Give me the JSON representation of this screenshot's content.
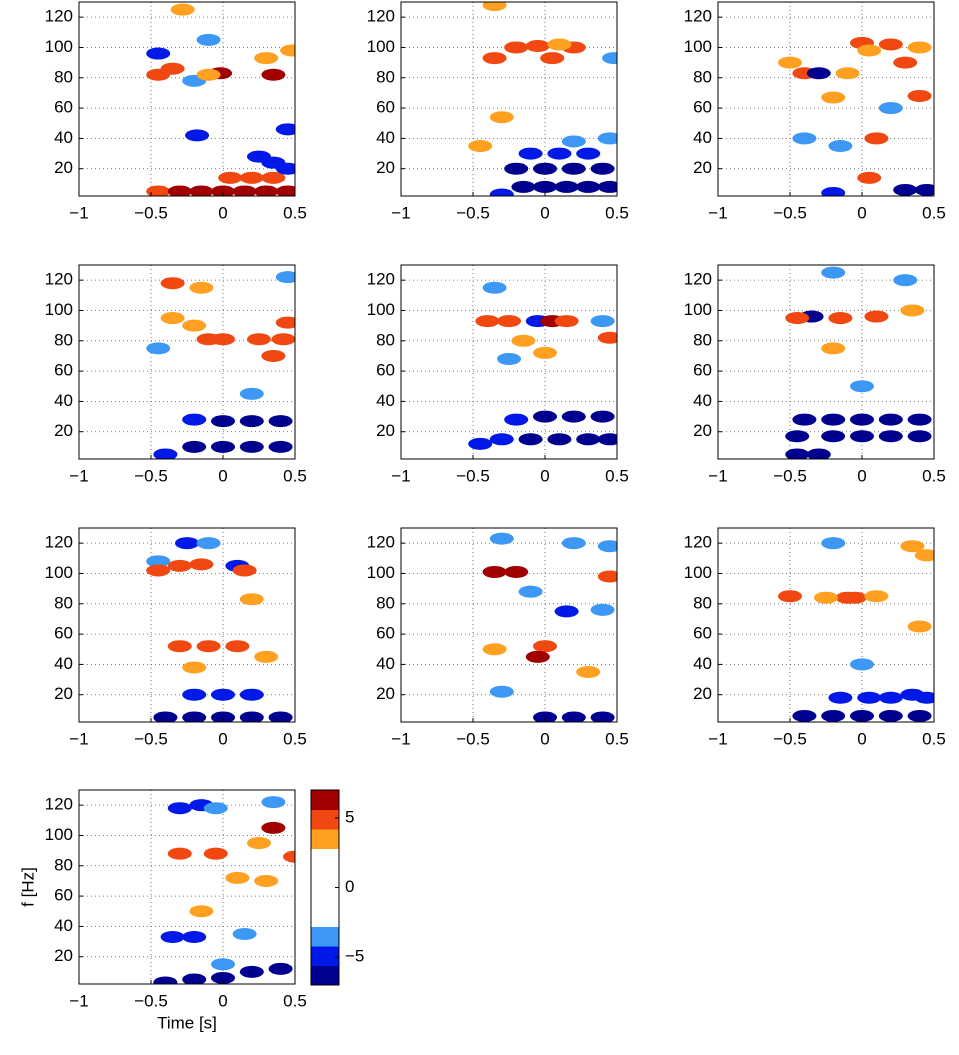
{
  "chart_data": [
    {
      "type": "heatmap",
      "xlim": [
        -1,
        0.5
      ],
      "ylim": [
        2,
        130
      ],
      "xticks": [
        {
          "value": -1,
          "label": "−1"
        },
        {
          "value": -0.5,
          "label": "−0.5"
        },
        0,
        0.5
      ],
      "yticks": [
        20,
        40,
        60,
        80,
        100,
        120
      ],
      "grid": true,
      "x": [
        -0.45,
        -0.3,
        -0.15,
        0,
        0.15,
        0.3,
        0.45,
        0.05,
        0.2,
        0.35,
        0.25,
        0.35,
        0.45,
        0.45,
        -0.18,
        -0.45,
        -0.1,
        -0.2,
        -0.45,
        -0.35,
        -0.02,
        0.35,
        0.3,
        0.48,
        -0.28,
        -0.1
      ],
      "y": [
        5,
        5,
        5,
        5,
        5,
        5,
        5,
        14,
        14,
        14,
        28,
        24,
        20,
        46,
        42,
        96,
        105,
        78,
        82,
        86,
        83,
        82,
        93,
        98,
        125,
        82
      ],
      "values": [
        5,
        6,
        6,
        6.5,
        6.5,
        6,
        6,
        5,
        5,
        5,
        -5,
        -5,
        -5,
        -5,
        -5,
        -5.5,
        -4,
        -4,
        5,
        5,
        6,
        6,
        4,
        4,
        4,
        4
      ]
    },
    {
      "type": "heatmap",
      "xlim": [
        -1,
        0.5
      ],
      "ylim": [
        2,
        130
      ],
      "xticks": [
        {
          "value": -1,
          "label": "−1"
        },
        {
          "value": -0.5,
          "label": "−0.5"
        },
        0,
        0.5
      ],
      "yticks": [
        20,
        40,
        60,
        80,
        100,
        120
      ],
      "grid": true,
      "x": [
        -0.3,
        -0.15,
        0,
        0.15,
        0.3,
        0.45,
        -0.2,
        0,
        0.2,
        0.4,
        -0.1,
        0.1,
        0.3,
        0.45,
        0.2,
        -0.35,
        -0.2,
        -0.05,
        0.05,
        0.2,
        0.1,
        -0.45,
        -0.3,
        -0.35,
        0.48
      ],
      "y": [
        3,
        8,
        8,
        8,
        8,
        8,
        20,
        20,
        20,
        20,
        30,
        30,
        30,
        40,
        38,
        93,
        100,
        101,
        93,
        100,
        102,
        35,
        54,
        128,
        93
      ],
      "values": [
        -5,
        -6,
        -6.5,
        -6.5,
        -6.5,
        -6.5,
        -6,
        -6,
        -6.5,
        -6.5,
        -5.5,
        -5.5,
        -5,
        -4,
        -4,
        5,
        5,
        5,
        5,
        5,
        4,
        4,
        4,
        4,
        -4
      ]
    },
    {
      "type": "heatmap",
      "xlim": [
        -1,
        0.5
      ],
      "ylim": [
        2,
        130
      ],
      "xticks": [
        {
          "value": -1,
          "label": "−1"
        },
        {
          "value": -0.5,
          "label": "−0.5"
        },
        0,
        0.5
      ],
      "yticks": [
        20,
        40,
        60,
        80,
        100,
        120
      ],
      "grid": true,
      "x": [
        -0.2,
        0.3,
        0.45,
        0.05,
        0.1,
        0.2,
        0,
        0.4,
        0.3,
        0.4,
        -0.5,
        -0.4,
        -0.1,
        -0.2,
        0.05,
        -0.3,
        0.2,
        -0.4,
        -0.15
      ],
      "y": [
        4,
        6,
        6,
        14,
        40,
        102,
        103,
        100,
        90,
        68,
        90,
        83,
        83,
        67,
        98,
        83,
        60,
        40,
        35
      ],
      "values": [
        -5,
        -6.5,
        -6.5,
        5.5,
        5,
        5,
        5,
        4,
        5,
        5,
        4,
        5,
        4,
        4,
        4,
        -6,
        -4,
        -4,
        -4
      ]
    },
    {
      "type": "heatmap",
      "xlim": [
        -1,
        0.5
      ],
      "ylim": [
        2,
        130
      ],
      "xticks": [
        {
          "value": -1,
          "label": "−1"
        },
        {
          "value": -0.5,
          "label": "−0.5"
        },
        0,
        0.5
      ],
      "yticks": [
        20,
        40,
        60,
        80,
        100,
        120
      ],
      "grid": true,
      "x": [
        -0.4,
        -0.2,
        0,
        0.2,
        0.4,
        -0.2,
        0,
        0.2,
        0.4,
        0.2,
        -0.45,
        0.45,
        -0.35,
        -0.15,
        -0.35,
        -0.2,
        -0.1,
        0,
        0.25,
        0.42,
        0.35,
        0.45
      ],
      "y": [
        5,
        10,
        10,
        10,
        10,
        28,
        27,
        27,
        27,
        45,
        75,
        122,
        118,
        115,
        95,
        90,
        81,
        81,
        81,
        81,
        70,
        92
      ],
      "values": [
        -5,
        -6,
        -6,
        -6,
        -6,
        -5.5,
        -6,
        -6,
        -6,
        -4,
        -4,
        -4,
        5,
        4,
        4,
        4,
        5,
        5,
        5,
        5.5,
        5,
        5
      ]
    },
    {
      "type": "heatmap",
      "xlim": [
        -1,
        0.5
      ],
      "ylim": [
        2,
        130
      ],
      "xticks": [
        {
          "value": -1,
          "label": "−1"
        },
        {
          "value": -0.5,
          "label": "−0.5"
        },
        0,
        0.5
      ],
      "yticks": [
        20,
        40,
        60,
        80,
        100,
        120
      ],
      "grid": true,
      "x": [
        -0.45,
        -0.3,
        -0.1,
        0.1,
        0.3,
        0.45,
        -0.2,
        0,
        0.2,
        0.4,
        -0.35,
        0.4,
        -0.25,
        -0.05,
        -0.4,
        -0.25,
        0.05,
        0.15,
        -0.15,
        0.45,
        0
      ],
      "y": [
        12,
        15,
        15,
        15,
        15,
        15,
        28,
        30,
        30,
        30,
        115,
        93,
        68,
        93,
        93,
        93,
        93,
        93,
        80,
        82,
        72
      ],
      "values": [
        -5,
        -5.5,
        -6,
        -6,
        -6,
        -6,
        -5,
        -6,
        -6,
        -6,
        -4,
        -4,
        -4,
        -5,
        5,
        5,
        6,
        5,
        4,
        5,
        4
      ]
    },
    {
      "type": "heatmap",
      "xlim": [
        -1,
        0.5
      ],
      "ylim": [
        2,
        130
      ],
      "xticks": [
        {
          "value": -1,
          "label": "−1"
        },
        {
          "value": -0.5,
          "label": "−0.5"
        },
        0,
        0.5
      ],
      "yticks": [
        20,
        40,
        60,
        80,
        100,
        120
      ],
      "grid": true,
      "x": [
        -0.45,
        -0.3,
        -0.45,
        -0.2,
        0,
        0.2,
        0.4,
        -0.4,
        -0.2,
        0,
        0.2,
        0.4,
        0,
        -0.35,
        0.3,
        -0.2,
        -0.45,
        -0.15,
        0.1,
        0.35,
        -0.2
      ],
      "y": [
        5,
        5,
        17,
        17,
        17,
        17,
        17,
        28,
        28,
        28,
        28,
        28,
        50,
        96,
        120,
        125,
        95,
        95,
        96,
        100,
        75
      ],
      "values": [
        -6,
        -6,
        -6,
        -6.5,
        -6.5,
        -6.5,
        -6.5,
        -6,
        -6.5,
        -6.5,
        -6.5,
        -6.5,
        -4,
        -6,
        -4,
        -4,
        5,
        5,
        5,
        4,
        4
      ]
    },
    {
      "type": "heatmap",
      "xlim": [
        -1,
        0.5
      ],
      "ylim": [
        2,
        130
      ],
      "xticks": [
        {
          "value": -1,
          "label": "−1"
        },
        {
          "value": -0.5,
          "label": "−0.5"
        },
        0,
        0.5
      ],
      "yticks": [
        20,
        40,
        60,
        80,
        100,
        120
      ],
      "grid": true,
      "x": [
        -0.4,
        -0.2,
        0,
        0.2,
        0.4,
        -0.2,
        0,
        0.2,
        -0.25,
        -0.1,
        0.1,
        -0.45,
        -0.45,
        -0.3,
        -0.15,
        0.15,
        -0.3,
        -0.1,
        0.1,
        0.3,
        -0.2,
        0.2
      ],
      "y": [
        5,
        5,
        5,
        5,
        5,
        20,
        20,
        20,
        120,
        120,
        105,
        108,
        102,
        105,
        106,
        102,
        52,
        52,
        52,
        45,
        38,
        83
      ],
      "values": [
        -6.5,
        -6.5,
        -6.5,
        -6.5,
        -6.5,
        -5,
        -5,
        -5,
        -5,
        -4,
        -5,
        -4,
        5.5,
        5,
        5,
        5.5,
        5,
        5,
        5,
        4,
        4,
        4
      ]
    },
    {
      "type": "heatmap",
      "xlim": [
        -1,
        0.5
      ],
      "ylim": [
        2,
        130
      ],
      "xticks": [
        {
          "value": -1,
          "label": "−1"
        },
        {
          "value": -0.5,
          "label": "−0.5"
        },
        0,
        0.5
      ],
      "yticks": [
        20,
        40,
        60,
        80,
        100,
        120
      ],
      "grid": true,
      "x": [
        0,
        0.2,
        0.4,
        -0.3,
        -0.3,
        0.15,
        0.4,
        0.2,
        0.45,
        -0.1,
        -0.35,
        -0.2,
        0.45,
        0,
        -0.05,
        -0.35,
        0.3
      ],
      "y": [
        5,
        5,
        5,
        22,
        123,
        75,
        76,
        120,
        118,
        88,
        101,
        101,
        98,
        52,
        45,
        50,
        35
      ],
      "values": [
        -6,
        -6.5,
        -6.5,
        -4,
        -4,
        -5,
        -4,
        -4,
        -4,
        -4,
        6,
        6,
        5,
        5,
        6,
        4,
        4
      ]
    },
    {
      "type": "heatmap",
      "xlim": [
        -1,
        0.5
      ],
      "ylim": [
        2,
        130
      ],
      "xticks": [
        {
          "value": -1,
          "label": "−1"
        },
        {
          "value": -0.5,
          "label": "−0.5"
        },
        0,
        0.5
      ],
      "yticks": [
        20,
        40,
        60,
        80,
        100,
        120
      ],
      "grid": true,
      "x": [
        -0.4,
        -0.2,
        0,
        0.2,
        0.4,
        -0.15,
        0.05,
        0.2,
        0.35,
        0.45,
        -0.2,
        0,
        -0.5,
        -0.1,
        -0.05,
        0.1,
        0.35,
        0.45,
        -0.25,
        0.4
      ],
      "y": [
        6,
        6,
        6,
        6,
        6,
        18,
        18,
        18,
        20,
        18,
        120,
        40,
        85,
        84,
        84,
        85,
        118,
        112,
        84,
        65
      ],
      "values": [
        -6.5,
        -6.5,
        -6.5,
        -6.5,
        -6.5,
        -5,
        -5,
        -5,
        -5,
        -5,
        -4,
        -4,
        5.5,
        5.5,
        5,
        4,
        4,
        4,
        4,
        4
      ]
    },
    {
      "type": "heatmap",
      "xlim": [
        -1,
        0.5
      ],
      "ylim": [
        2,
        130
      ],
      "xticks": [
        {
          "value": -1,
          "label": "−1"
        },
        {
          "value": -0.5,
          "label": "−0.5"
        },
        0,
        0.5
      ],
      "yticks": [
        20,
        40,
        60,
        80,
        100,
        120
      ],
      "grid": true,
      "xlabel": "Time [s]",
      "ylabel": "f [Hz]",
      "x": [
        -0.4,
        -0.2,
        0,
        0.2,
        0.4,
        -0.35,
        -0.2,
        0.15,
        -0.3,
        -0.15,
        -0.05,
        0.35,
        0,
        -0.3,
        -0.05,
        0.35,
        0.25,
        0.5,
        -0.15,
        0.1,
        0.3
      ],
      "y": [
        3,
        5,
        6,
        10,
        12,
        33,
        33,
        35,
        118,
        120,
        118,
        122,
        15,
        88,
        88,
        105,
        95,
        86,
        50,
        72,
        70
      ],
      "values": [
        -6,
        -6.5,
        -6.5,
        -6.5,
        -6.5,
        -5,
        -5,
        -4,
        -5.5,
        -5,
        -4,
        -4,
        -4,
        5,
        5.5,
        6,
        4,
        5,
        4,
        4,
        4
      ]
    },
    {
      "type": "colorbar",
      "clim": [
        -7,
        7
      ],
      "ticks": [
        5,
        0,
        {
          "value": -5,
          "label": "−5"
        }
      ],
      "colors": [
        "#00008f",
        "#0018e8",
        "#3c98f4",
        "#ffffff",
        "#ffffff",
        "#ffffff",
        "#ffffff",
        "#ffa020",
        "#f04810",
        "#a00000"
      ]
    }
  ]
}
